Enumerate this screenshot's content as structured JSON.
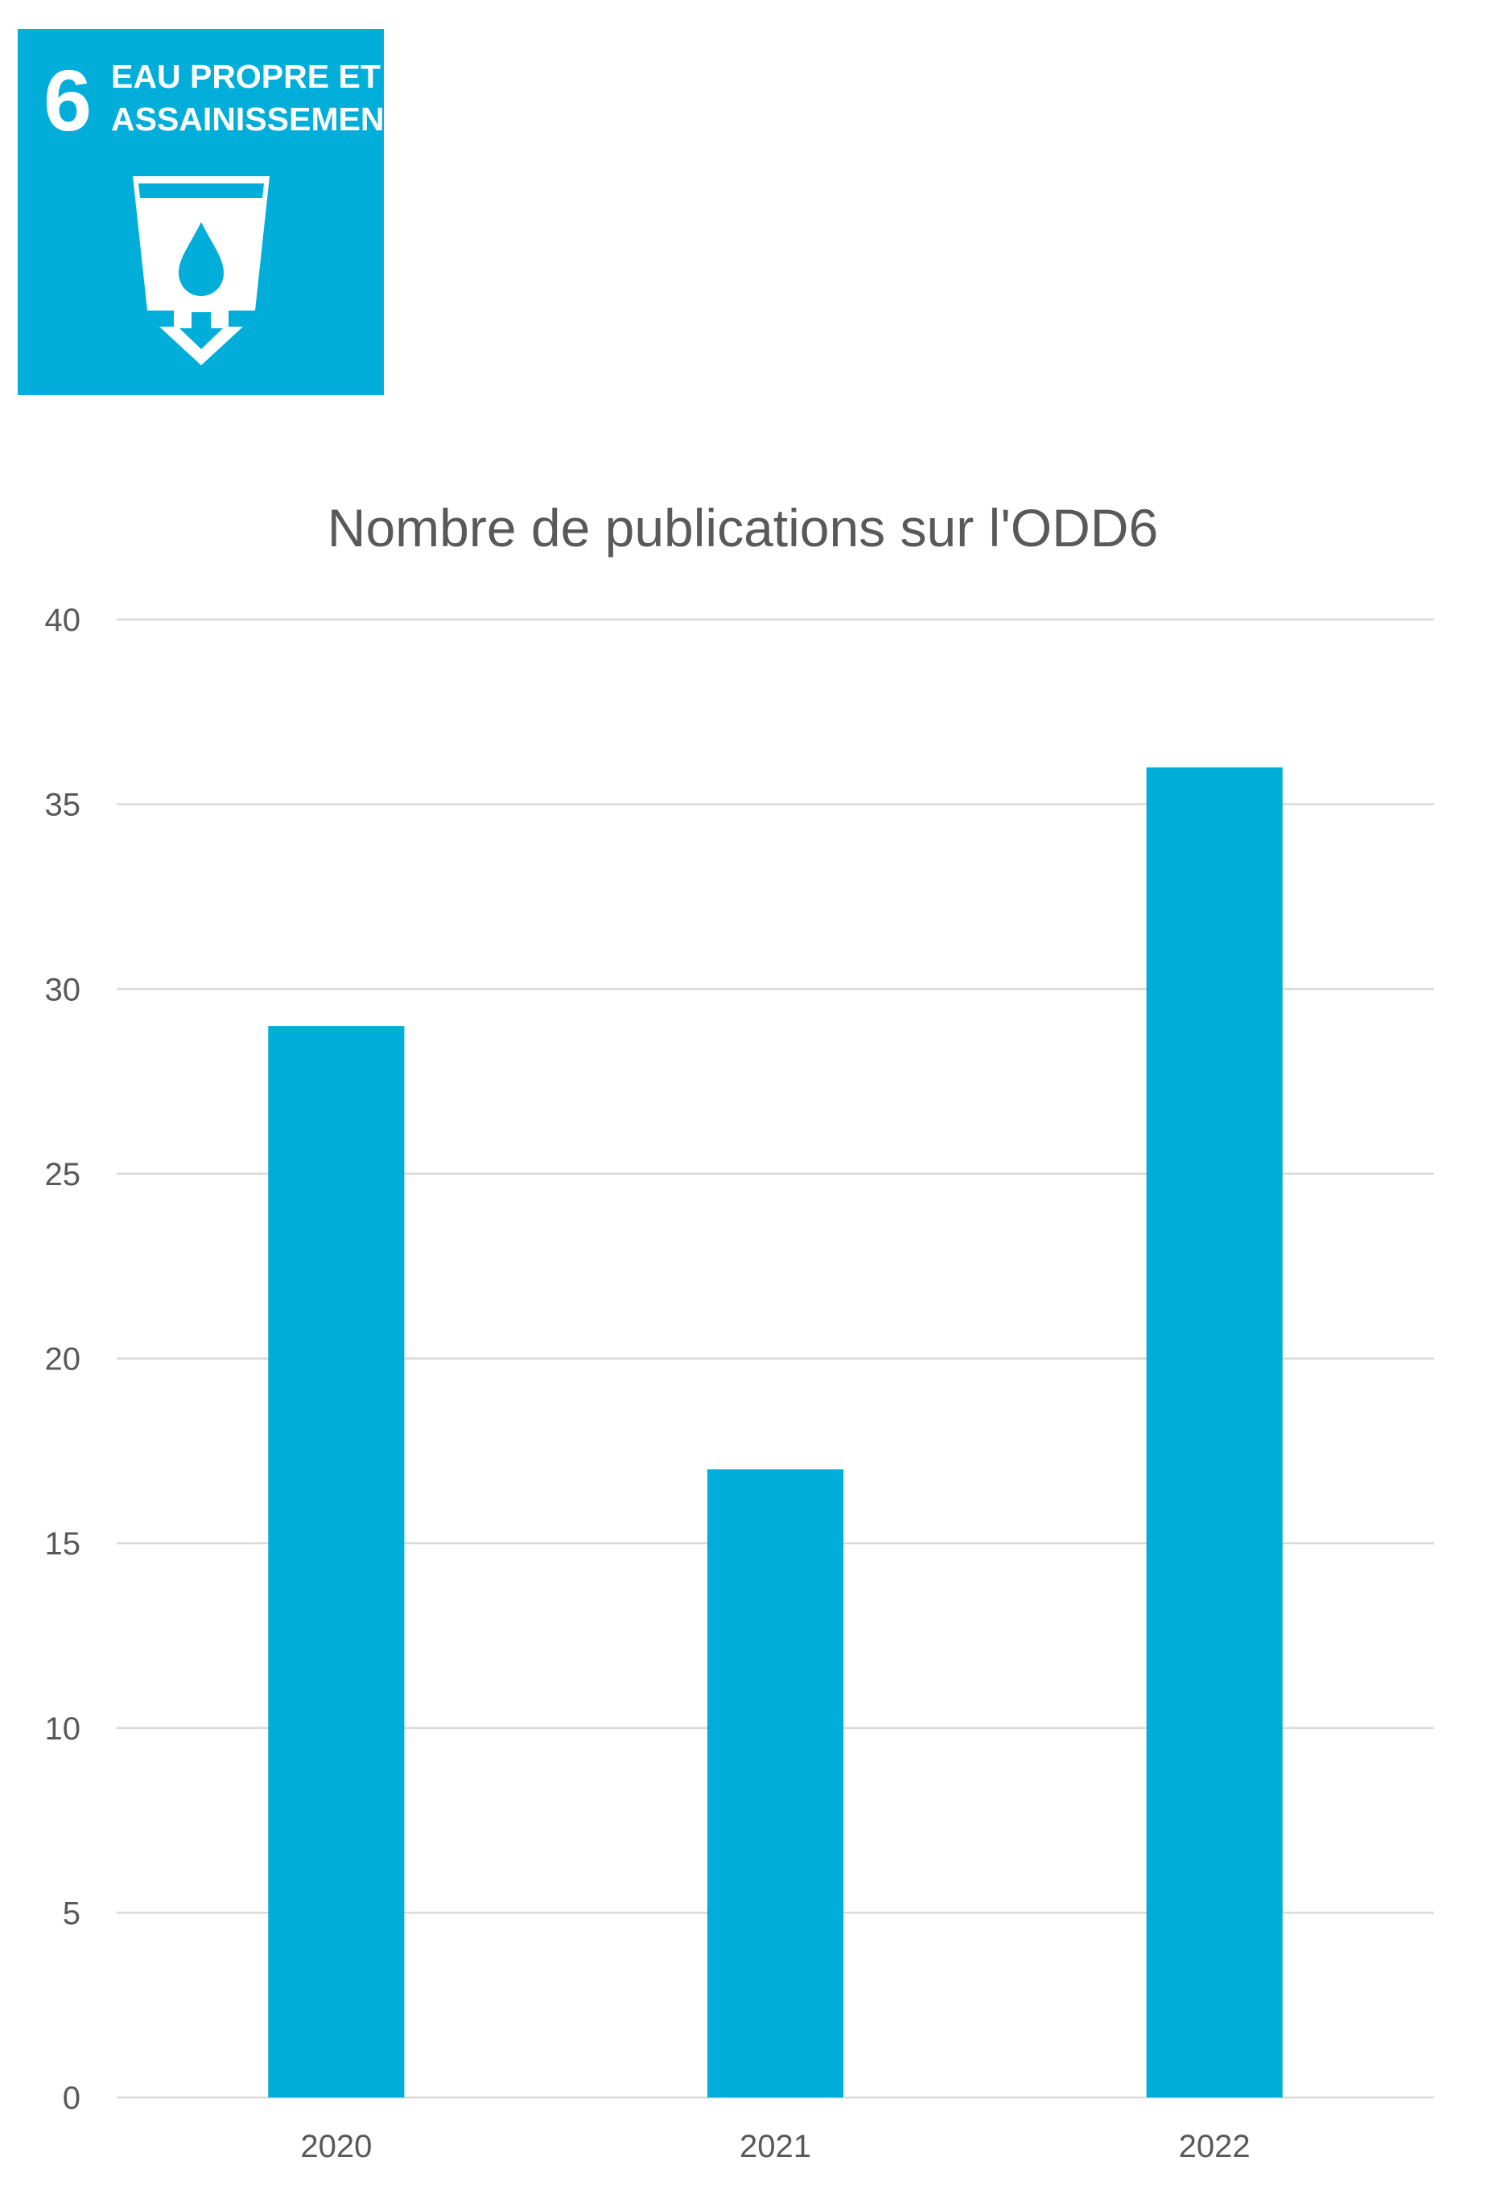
{
  "badge": {
    "number": "6",
    "line1": "EAU PROPRE ET",
    "line2": "ASSAINISSEMENT",
    "icon": "water-glass-drop-icon",
    "color": "#00AED9"
  },
  "chart_data": {
    "type": "bar",
    "title": "Nombre de publications sur l'ODD6",
    "categories": [
      "2020",
      "2021",
      "2022"
    ],
    "values": [
      29,
      17,
      36
    ],
    "ylim": [
      0,
      40
    ],
    "yticks": [
      0,
      5,
      10,
      15,
      20,
      25,
      30,
      35,
      40
    ],
    "grid": true,
    "bar_color": "#00AED9"
  }
}
